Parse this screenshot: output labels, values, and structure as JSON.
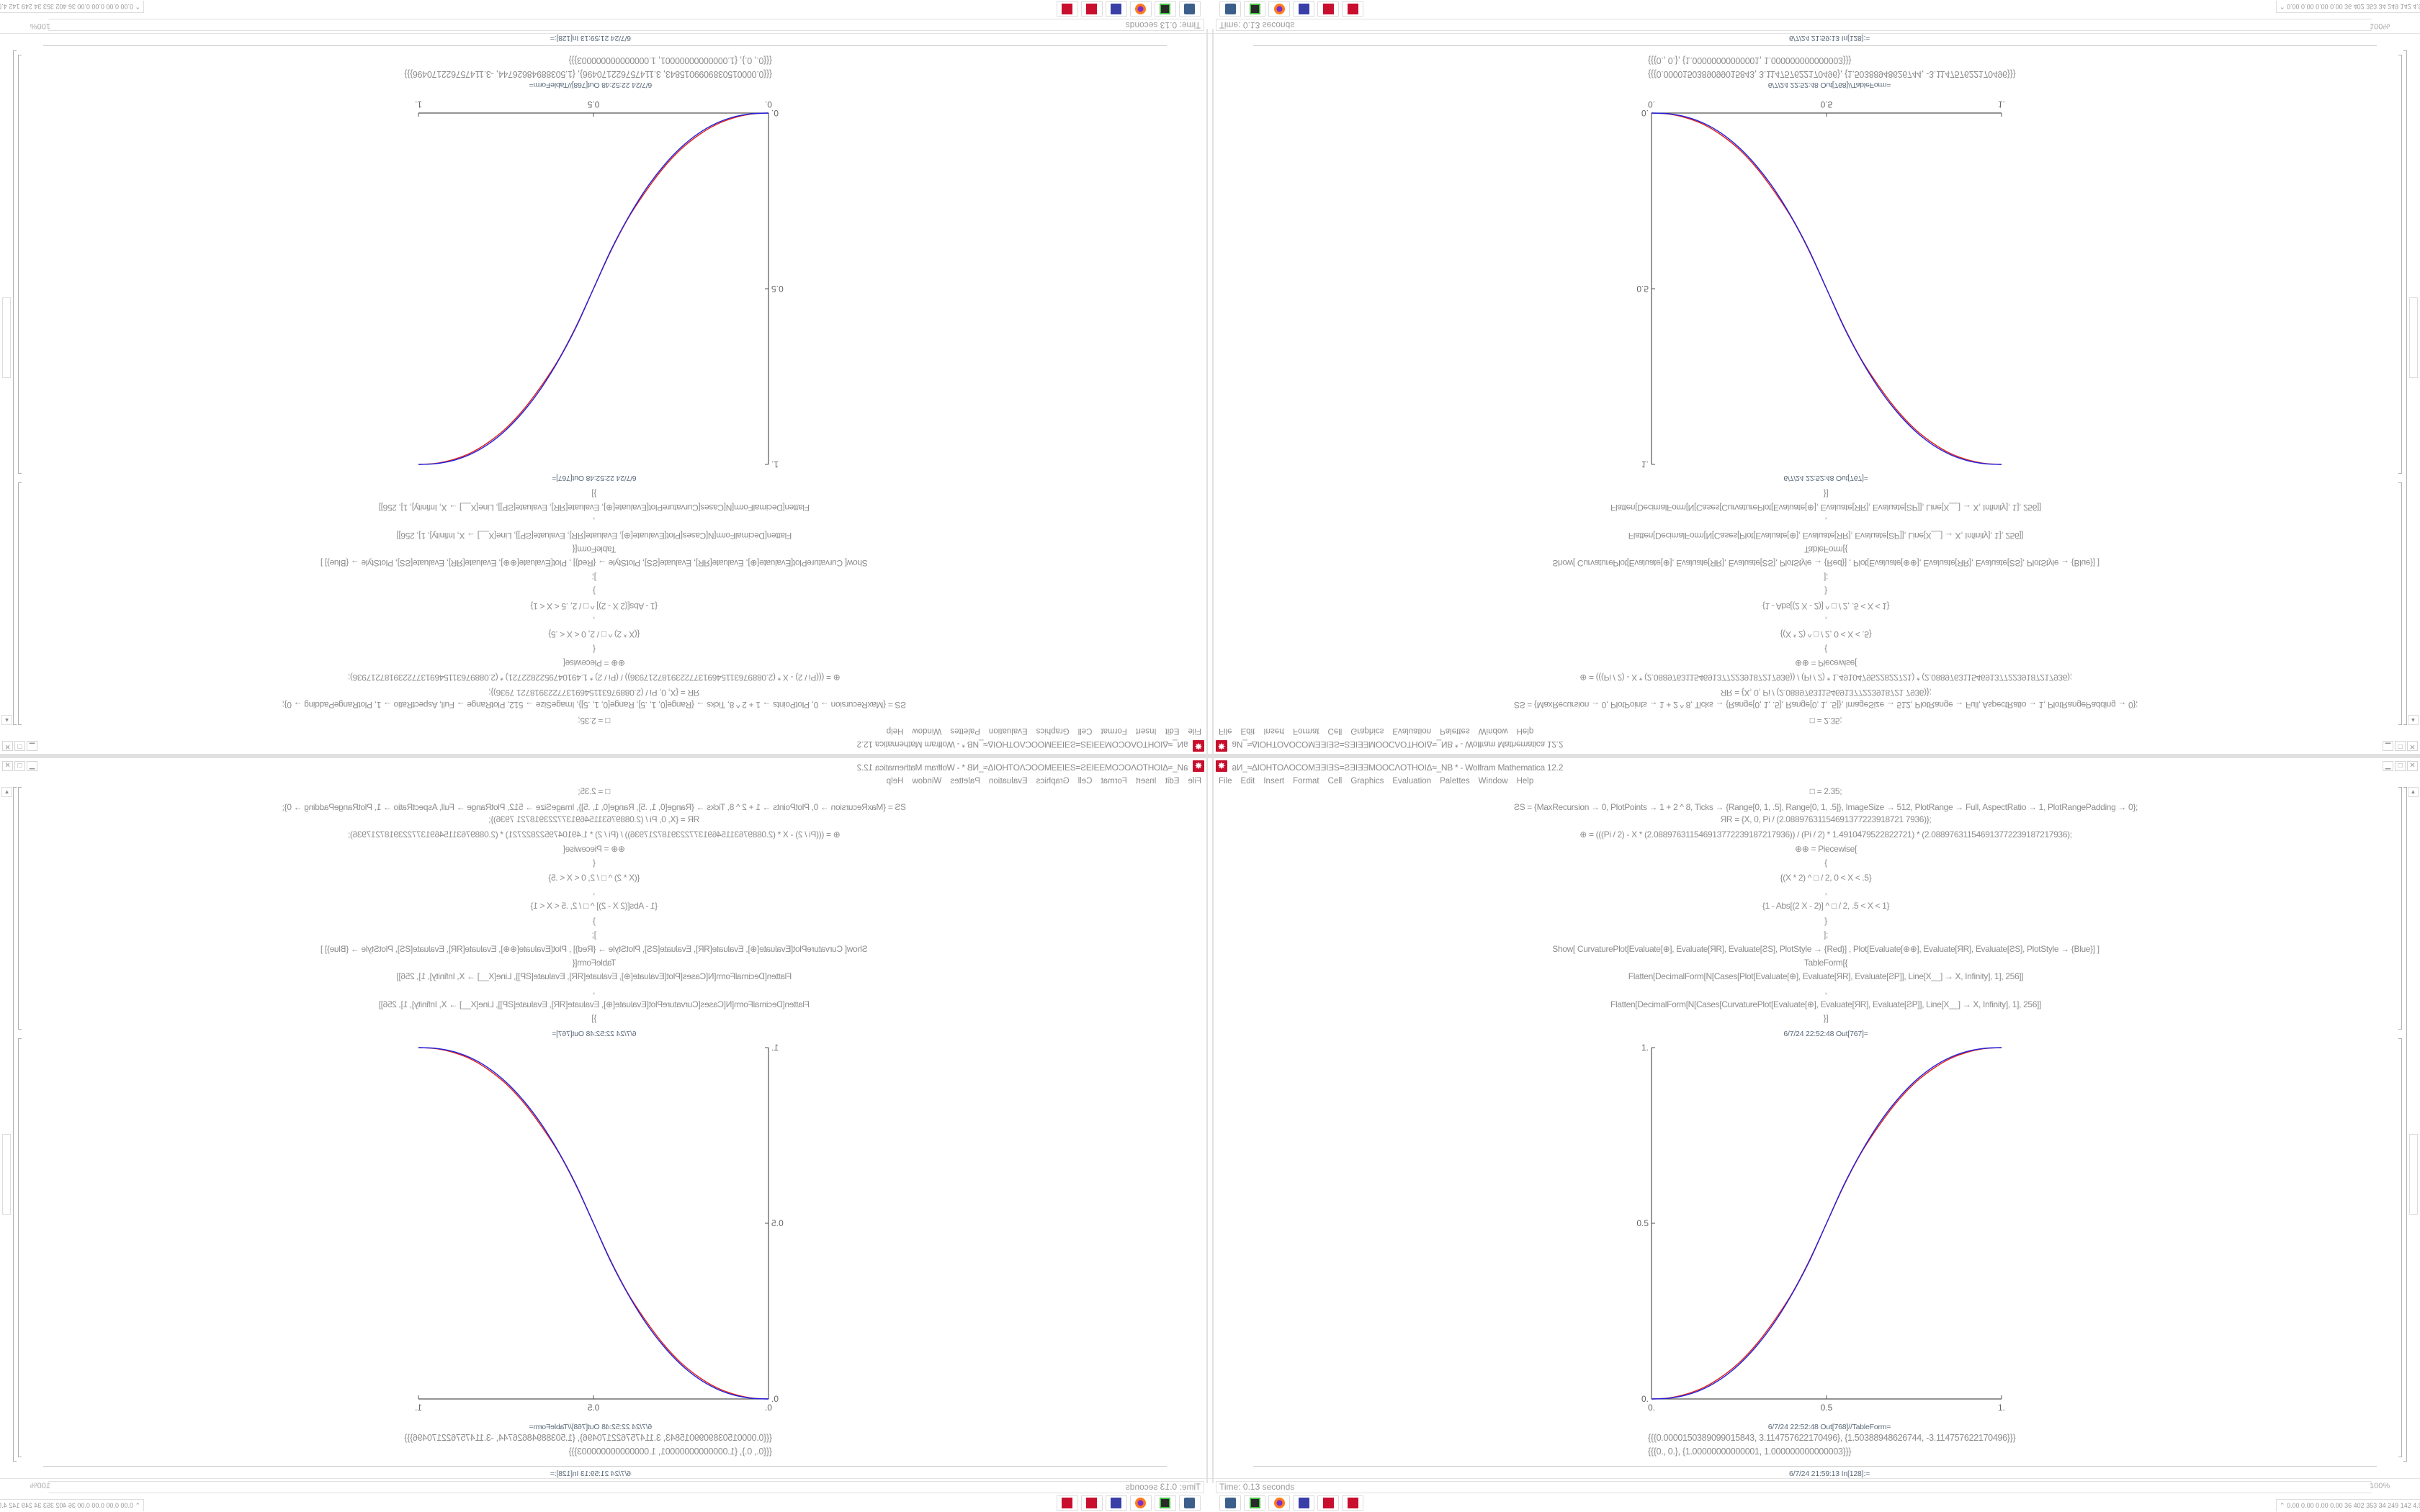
{
  "window": {
    "title": "อИ_≈ΔIOHTOΛOCOMƎƎIƎS=ƧƎIƎƎMOOCΛOTHOIΔ≈_NB * - Wolfram Mathematica 12.2",
    "app_icon": "mathematica-gear-icon",
    "controls": {
      "minimize": "▁",
      "maximize": "□",
      "close": "✕"
    }
  },
  "menu": [
    "File",
    "Edit",
    "Insert",
    "Format",
    "Cell",
    "Graphics",
    "Evaluation",
    "Palettes",
    "Window",
    "Help"
  ],
  "notebook": {
    "input_lines": [
      "□ = 2.35;",
      "ƧS = {MaxRecursion → 0, PlotPoints → 1 + 2 ^ 8, Ticks → {Range[0, 1, .5], Range[0, 1, .5]}, ImageSize → 512, PlotRange → Full, AspectRatio → 1, PlotRangePadding → 0};",
      "ЯR = {X, 0, Pi / (2.08897631154691377223918721 7936)};",
      "⊕ = (((Pi / 2) - X * (2.088976311546913772239187217936)) / (Pi / 2) * 1.4910479522822721) * (2.088976311546913772239187217936);",
      "⊕⊕ = Piecewise[",
      "{",
      "{(X * 2) ^ □ / 2, 0 < X < .5}",
      ",",
      "{1 - Abs[(2 X - 2)] ^ □ / 2, .5 < X < 1}",
      "}",
      "];",
      "Show[   CurvaturePlot[Evaluate[⊕], Evaluate[ЯR], Evaluate[ƧS], PlotStyle → {Red}]   ,   Plot[Evaluate[⊕⊕], Evaluate[ЯR], Evaluate[ƧS],  PlotStyle → {Blue}] ]",
      "TableForm[{",
      "Flatten[DecimalForm[N[Cases[Plot[Evaluate[⊕], Evaluate[ЯR], Evaluate[ƧP]], Line[X__] → X, Infinity], 1], 256]]",
      ",",
      "Flatten[DecimalForm[N[Cases[CurvaturePlot[Evaluate[⊕], Evaluate[ЯR], Evaluate[ƧP]], Line[X__] → X, Infinity], 1], 256]]",
      "}]"
    ],
    "out_plot_label": "6/7/24 22:52:48 Out[767]=",
    "out_table_label": "6/7/24 22:52:48 Out[768]//TableForm=",
    "out_table_lines": [
      "{{{0.0000150389099015843, 3.114757622170496}, {1.50388948626744, -3.114757622170496}}}",
      "{{{0., 0.}, {1.00000000000001, 1.000000000000003}}}"
    ],
    "next_input_label": "6/7/24 21:59:13 In[128]:="
  },
  "chart_data": {
    "type": "line",
    "xlim": [
      0,
      1
    ],
    "ylim": [
      0,
      1
    ],
    "x_ticks": [
      "0.",
      "0.5",
      "1."
    ],
    "y_ticks": [
      "0.",
      "0.5",
      "1."
    ],
    "grid": false,
    "x": [
      0,
      0.05,
      0.1,
      0.15,
      0.2,
      0.25,
      0.3,
      0.35,
      0.4,
      0.45,
      0.5,
      0.55,
      0.6,
      0.65,
      0.7,
      0.75,
      0.8,
      0.85,
      0.9,
      0.95,
      1
    ],
    "series": [
      {
        "color": "#e0201e",
        "values": [
          0,
          0.003,
          0.014,
          0.033,
          0.063,
          0.103,
          0.156,
          0.222,
          0.298,
          0.392,
          0.5,
          0.608,
          0.702,
          0.778,
          0.844,
          0.897,
          0.937,
          0.967,
          0.986,
          0.997,
          1
        ]
      },
      {
        "color": "#2020e0",
        "values": [
          0,
          0.0022,
          0.0114,
          0.0295,
          0.058,
          0.098,
          0.1506,
          0.216,
          0.296,
          0.39,
          0.5,
          0.61,
          0.704,
          0.784,
          0.8494,
          0.902,
          0.942,
          0.9705,
          0.9886,
          0.9978,
          1
        ]
      }
    ]
  },
  "status": {
    "time": "Time: 0.13 seconds",
    "zoom": "100%"
  },
  "taskbar": [
    "monitor-icon",
    "terminal-icon",
    "firefox-icon",
    "floppy-64-icon",
    "mathematica-icon",
    "mathematica-icon"
  ],
  "perf_meter": "⌃ 0.00 0.00 0.00 0.00  36  402  353  34  249  142  4.5  1.5  33  29  29553811",
  "colors": {
    "accent": "#c8102e",
    "red_curve": "#e0201e",
    "blue_curve": "#2020e0"
  }
}
